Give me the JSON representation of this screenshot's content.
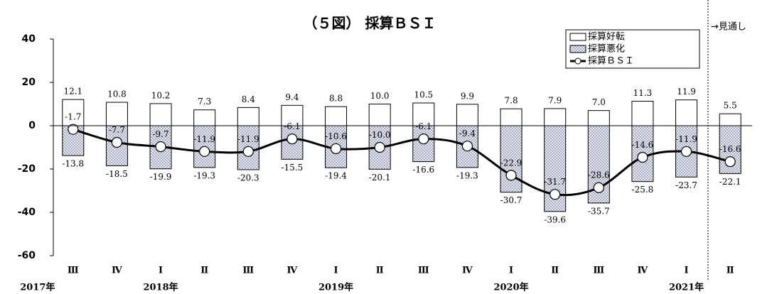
{
  "chart_data": {
    "type": "bar_line",
    "title": "（５図） 採算ＢＳＩ",
    "annotation": "→見通し",
    "categories": [
      "Ⅲ",
      "Ⅳ",
      "Ⅰ",
      "Ⅱ",
      "Ⅲ",
      "Ⅳ",
      "Ⅰ",
      "Ⅱ",
      "Ⅲ",
      "Ⅳ",
      "Ⅰ",
      "Ⅱ",
      "Ⅲ",
      "Ⅳ",
      "Ⅰ",
      "Ⅱ"
    ],
    "year_labels": [
      "2017年",
      null,
      "2018年",
      null,
      null,
      null,
      "2019年",
      null,
      null,
      null,
      "2020年",
      null,
      null,
      null,
      "2021年",
      null
    ],
    "ylim": [
      -60,
      40
    ],
    "yticks": [
      -60,
      -40,
      -20,
      0,
      20,
      40
    ],
    "series": [
      {
        "name": "採算好転",
        "kind": "bar",
        "color": "#ffffff",
        "values": [
          12.1,
          10.8,
          10.2,
          7.3,
          8.4,
          9.4,
          8.8,
          10.0,
          10.5,
          9.9,
          7.8,
          7.9,
          7.0,
          11.3,
          11.9,
          5.5
        ],
        "value_labels": [
          "12.1",
          "10.8",
          "10.2",
          "7.3",
          "8.4",
          "9.4",
          "8.8",
          "10.0",
          "10.5",
          "9.9",
          "7.8",
          "7.9",
          "7.0",
          "11.3",
          "11.9",
          "5.5"
        ]
      },
      {
        "name": "採算悪化",
        "kind": "bar",
        "color": "#8a8fb0",
        "values": [
          -13.8,
          -18.5,
          -19.9,
          -19.3,
          -20.3,
          -15.5,
          -19.4,
          -20.1,
          -16.6,
          -19.3,
          -30.7,
          -39.6,
          -35.7,
          -25.8,
          -23.7,
          -22.1
        ],
        "value_labels": [
          "-13.8",
          "-18.5",
          "-19.9",
          "-19.3",
          "-20.3",
          "-15.5",
          "-19.4",
          "-20.1",
          "-16.6",
          "-19.3",
          "-30.7",
          "-39.6",
          "-35.7",
          "-25.8",
          "-23.7",
          "-22.1"
        ]
      },
      {
        "name": "採算ＢＳＩ",
        "kind": "line",
        "color": "#000000",
        "values": [
          -1.7,
          -7.7,
          -9.7,
          -11.9,
          -11.9,
          -6.1,
          -10.6,
          -10.0,
          -6.1,
          -9.4,
          -22.9,
          -31.7,
          -28.6,
          -14.6,
          -11.9,
          -16.6
        ],
        "value_labels": [
          "-1.7",
          "-7.7",
          "-9.7",
          "-11.9",
          "-11.9",
          "-6.1",
          "-10.6",
          "-10.0",
          "-6.1",
          "-9.4",
          "-22.9",
          "-31.7",
          "-28.6",
          "-14.6",
          "-11.9",
          "-16.6"
        ]
      }
    ]
  }
}
